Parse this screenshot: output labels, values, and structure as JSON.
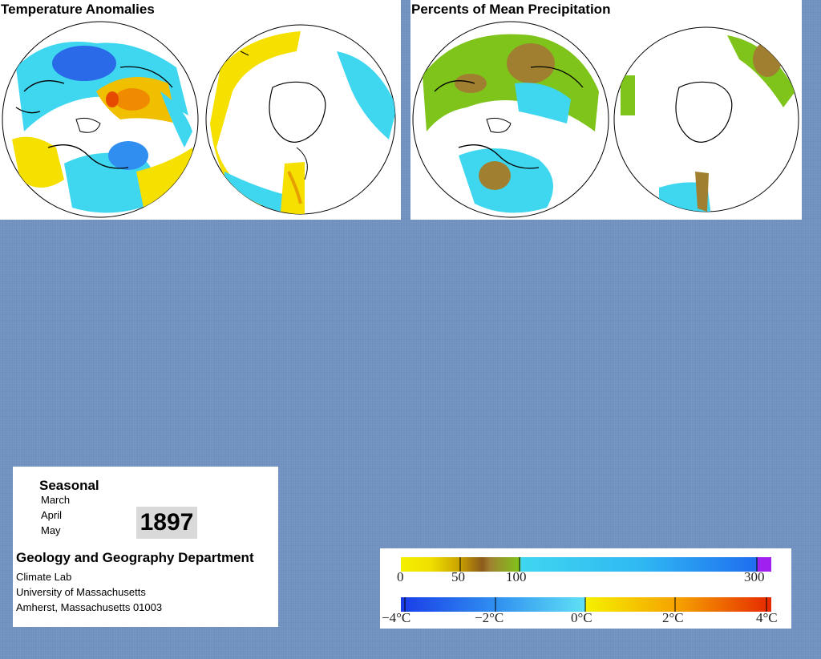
{
  "temperature": {
    "title": "Temperature Anomalies"
  },
  "precipitation": {
    "title": "Percents of Mean Precipitation"
  },
  "info": {
    "seasonal": "Seasonal",
    "months": [
      "March",
      "April",
      "May"
    ],
    "year": "1897",
    "department": "Geology and Geography Department",
    "lines": [
      "Climate Lab",
      "University of Massachusetts",
      "Amherst, Massachusetts 01003"
    ]
  },
  "legend": {
    "precip_labels": [
      "0",
      "50",
      "100",
      "300"
    ],
    "temp_labels": [
      "−4°C",
      "−2°C",
      "0°C",
      "2°C",
      "4°C"
    ],
    "precip_colors": [
      "#f5f000",
      "#c8a000",
      "#8b5a1a",
      "#7fc41a",
      "#3fd6f0",
      "#2a8cf0",
      "#a020f0"
    ],
    "temp_colors": [
      "#1a3ce8",
      "#2f8ef0",
      "#5fe0f5",
      "#f5f000",
      "#f5a000",
      "#e62800"
    ]
  }
}
